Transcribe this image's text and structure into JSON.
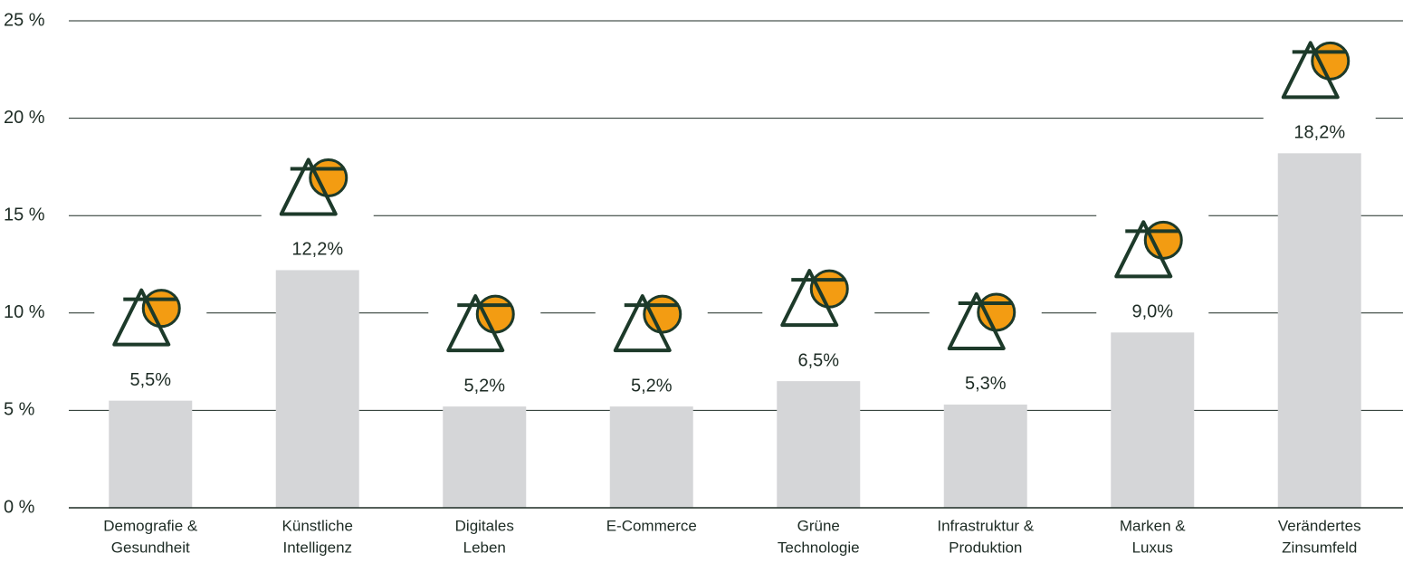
{
  "chart_data": {
    "type": "bar",
    "categories": [
      [
        "Demografie &",
        "Gesundheit"
      ],
      [
        "Künstliche",
        "Intelligenz"
      ],
      [
        "Digitales",
        "Leben"
      ],
      [
        "E-Commerce"
      ],
      [
        "Grüne",
        "Technologie"
      ],
      [
        "Infrastruktur &",
        "Produktion"
      ],
      [
        "Marken &",
        "Luxus"
      ],
      [
        "Verändertes",
        "Zinsumfeld"
      ]
    ],
    "values": [
      5.5,
      12.2,
      5.2,
      5.2,
      6.5,
      5.3,
      9.0,
      18.2
    ],
    "value_labels": [
      "5,5%",
      "12,2%",
      "5,2%",
      "5,2%",
      "6,5%",
      "5,3%",
      "9,0%",
      "18,2%"
    ],
    "color": "#d5d6d8",
    "ylim": [
      0,
      25
    ],
    "yticks": [
      {
        "value": 0,
        "label": "0 %"
      },
      {
        "value": 5,
        "label": "5 %"
      },
      {
        "value": 10,
        "label": "10 %"
      },
      {
        "value": 15,
        "label": "15 %"
      },
      {
        "value": 20,
        "label": "20 %"
      },
      {
        "value": 25,
        "label": "25 %"
      }
    ],
    "grid": true
  }
}
